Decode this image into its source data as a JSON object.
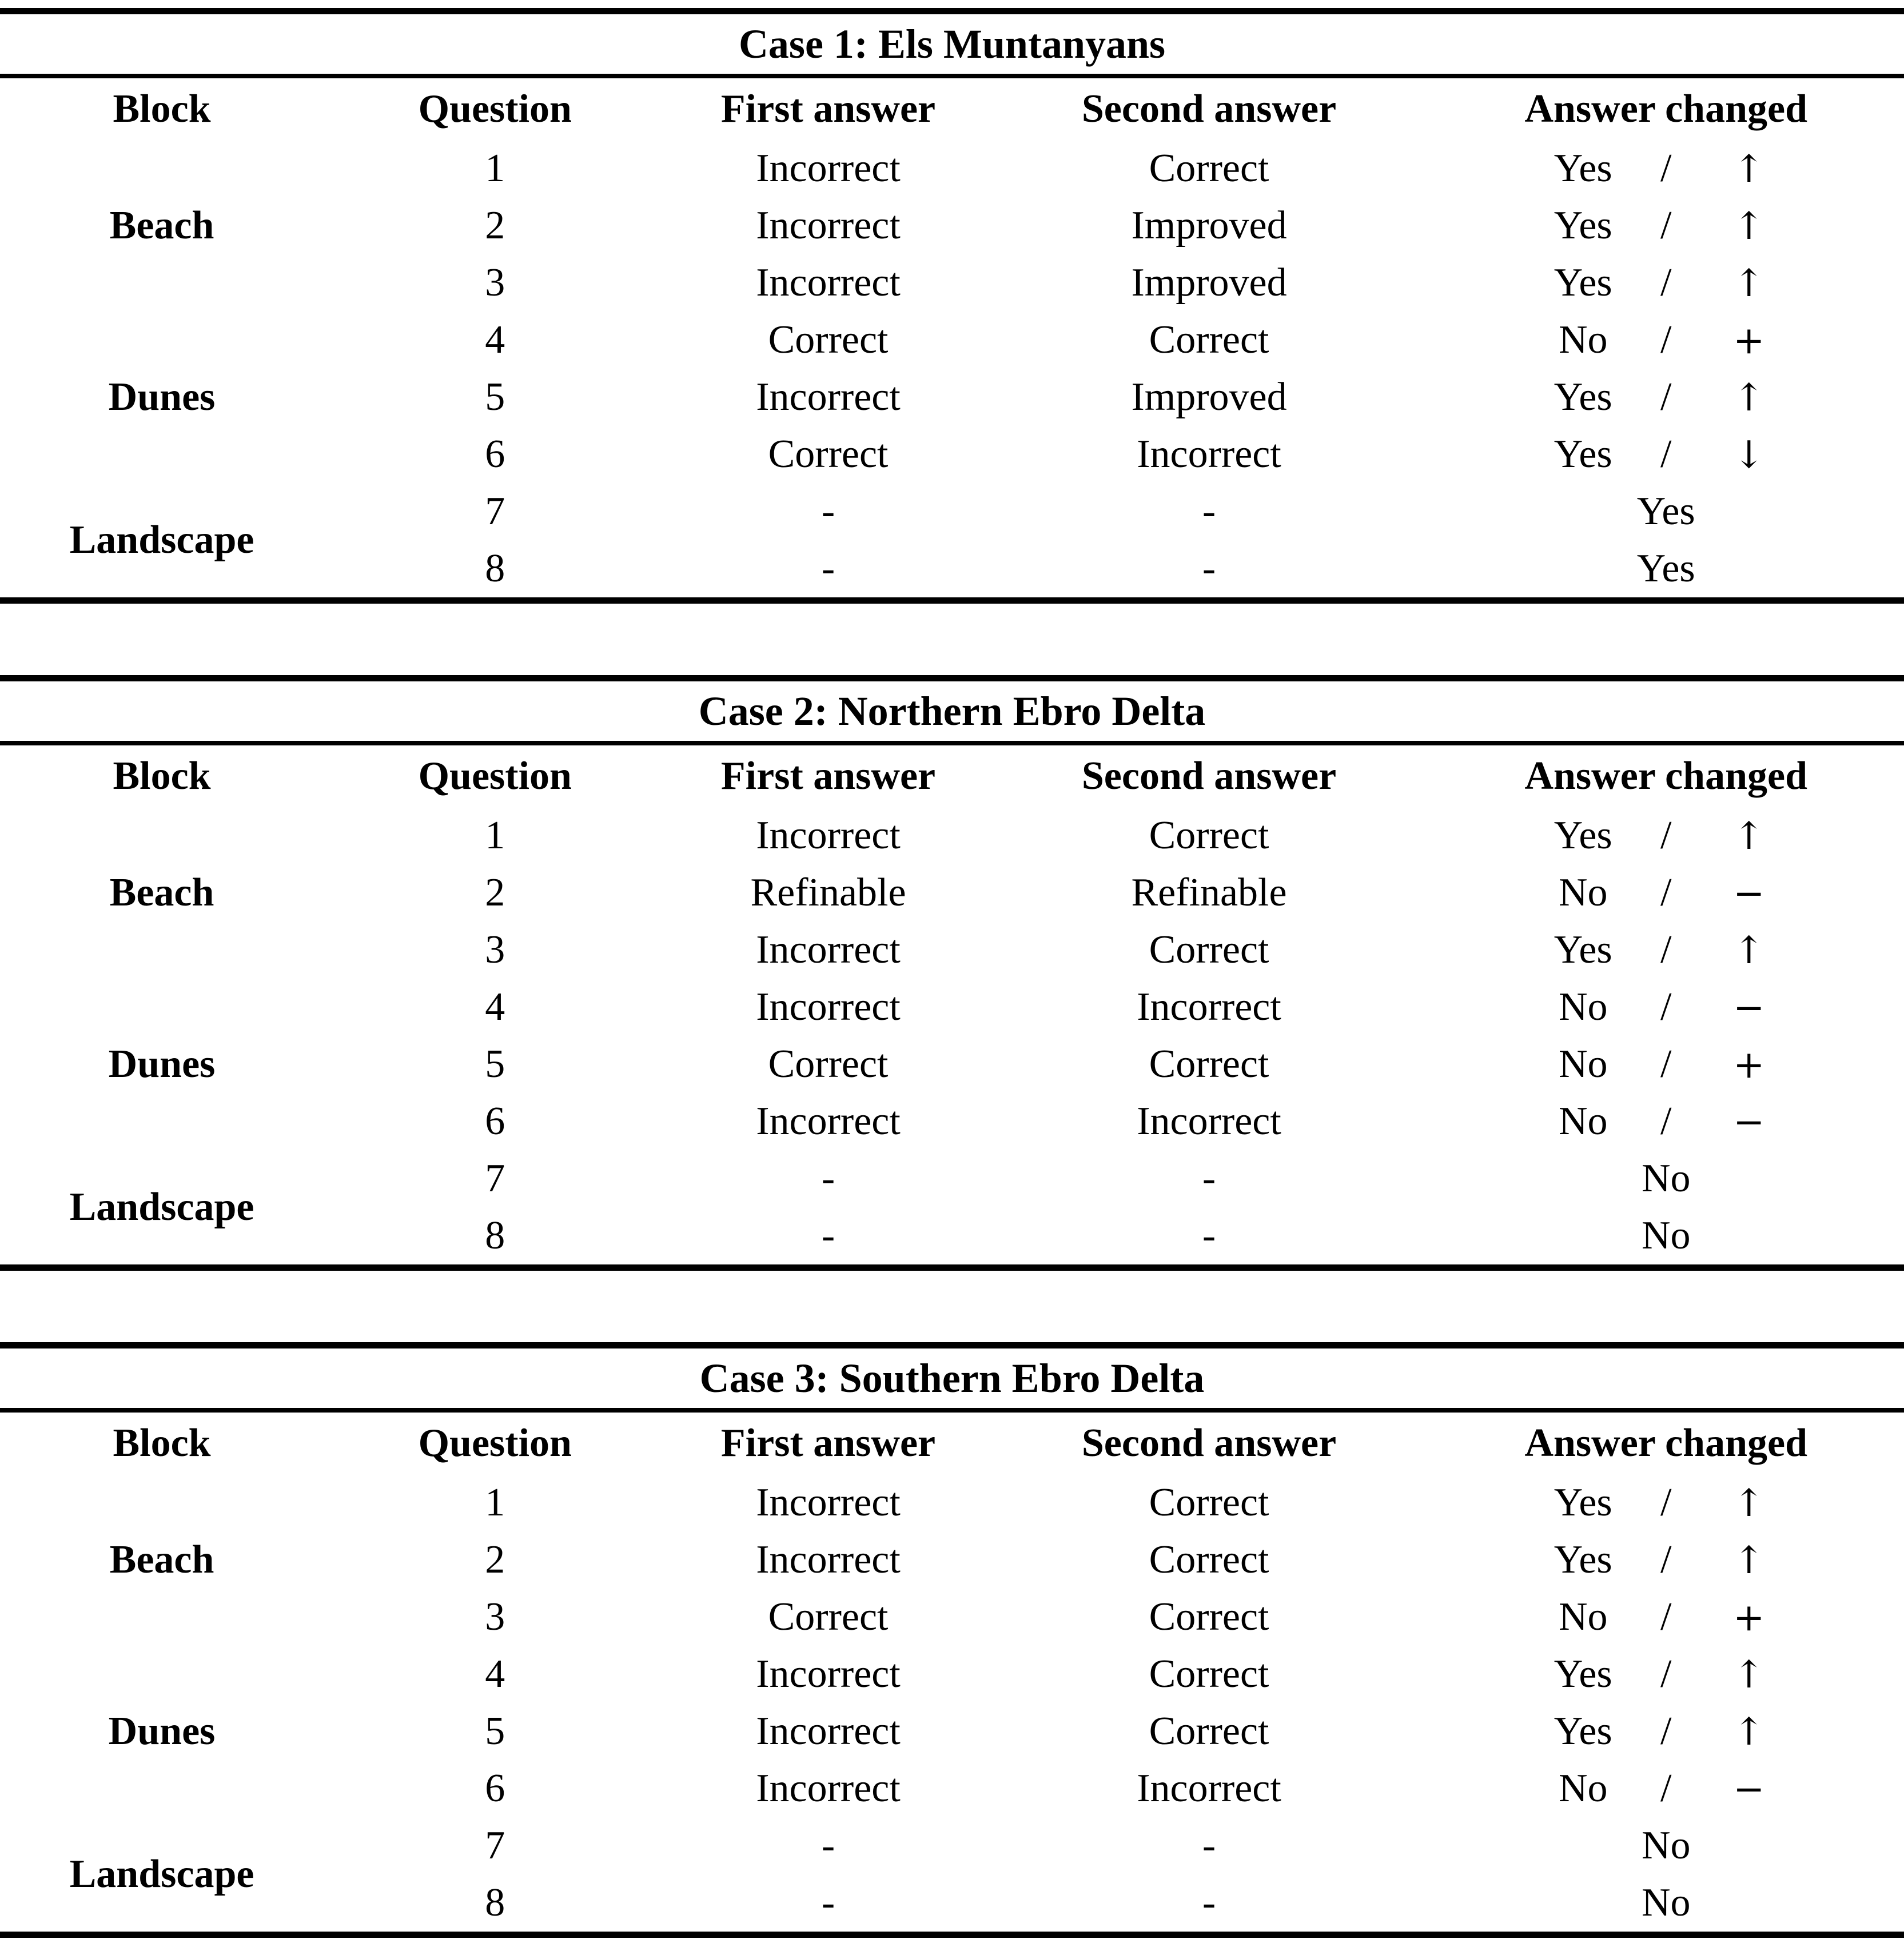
{
  "page": {
    "background": "#ffffff",
    "text_color": "#000000",
    "rule_color": "#000000"
  },
  "tables": [
    {
      "title": "Case 1: Els Muntanyans",
      "columns": [
        "Block",
        "Question",
        "First answer",
        "Second answer",
        "Answer changed"
      ],
      "blocks": [
        {
          "label": "Beach"
        },
        {
          "label": "Dunes"
        },
        {
          "label": "Landscape"
        }
      ],
      "rows": [
        {
          "question": "1",
          "first": "Incorrect",
          "second": "Correct",
          "changed": "Yes",
          "sep": "/",
          "symbol": "↑"
        },
        {
          "question": "2",
          "first": "Incorrect",
          "second": "Improved",
          "changed": "Yes",
          "sep": "/",
          "symbol": "↑"
        },
        {
          "question": "3",
          "first": "Incorrect",
          "second": "Improved",
          "changed": "Yes",
          "sep": "/",
          "symbol": "↑"
        },
        {
          "question": "4",
          "first": "Correct",
          "second": "Correct",
          "changed": "No",
          "sep": "/",
          "symbol": "+"
        },
        {
          "question": "5",
          "first": "Incorrect",
          "second": "Improved",
          "changed": "Yes",
          "sep": "/",
          "symbol": "↑"
        },
        {
          "question": "6",
          "first": "Correct",
          "second": "Incorrect",
          "changed": "Yes",
          "sep": "/",
          "symbol": "↓"
        },
        {
          "question": "7",
          "first": "-",
          "second": "-",
          "changed": "Yes",
          "sep": "",
          "symbol": ""
        },
        {
          "question": "8",
          "first": "-",
          "second": "-",
          "changed": "Yes",
          "sep": "",
          "symbol": ""
        }
      ]
    },
    {
      "title": "Case 2: Northern Ebro Delta",
      "columns": [
        "Block",
        "Question",
        "First answer",
        "Second answer",
        "Answer changed"
      ],
      "blocks": [
        {
          "label": "Beach"
        },
        {
          "label": "Dunes"
        },
        {
          "label": "Landscape"
        }
      ],
      "rows": [
        {
          "question": "1",
          "first": "Incorrect",
          "second": "Correct",
          "changed": "Yes",
          "sep": "/",
          "symbol": "↑"
        },
        {
          "question": "2",
          "first": "Refinable",
          "second": "Refinable",
          "changed": "No",
          "sep": "/",
          "symbol": "−"
        },
        {
          "question": "3",
          "first": "Incorrect",
          "second": "Correct",
          "changed": "Yes",
          "sep": "/",
          "symbol": "↑"
        },
        {
          "question": "4",
          "first": "Incorrect",
          "second": "Incorrect",
          "changed": "No",
          "sep": "/",
          "symbol": "−"
        },
        {
          "question": "5",
          "first": "Correct",
          "second": "Correct",
          "changed": "No",
          "sep": "/",
          "symbol": "+"
        },
        {
          "question": "6",
          "first": "Incorrect",
          "second": "Incorrect",
          "changed": "No",
          "sep": "/",
          "symbol": "−"
        },
        {
          "question": "7",
          "first": "-",
          "second": "-",
          "changed": "No",
          "sep": "",
          "symbol": ""
        },
        {
          "question": "8",
          "first": "-",
          "second": "-",
          "changed": "No",
          "sep": "",
          "symbol": ""
        }
      ]
    },
    {
      "title": "Case 3: Southern Ebro Delta",
      "columns": [
        "Block",
        "Question",
        "First answer",
        "Second answer",
        "Answer changed"
      ],
      "blocks": [
        {
          "label": "Beach"
        },
        {
          "label": "Dunes"
        },
        {
          "label": "Landscape"
        }
      ],
      "rows": [
        {
          "question": "1",
          "first": "Incorrect",
          "second": "Correct",
          "changed": "Yes",
          "sep": "/",
          "symbol": "↑"
        },
        {
          "question": "2",
          "first": "Incorrect",
          "second": "Correct",
          "changed": "Yes",
          "sep": "/",
          "symbol": "↑"
        },
        {
          "question": "3",
          "first": "Correct",
          "second": "Correct",
          "changed": "No",
          "sep": "/",
          "symbol": "+"
        },
        {
          "question": "4",
          "first": "Incorrect",
          "second": "Correct",
          "changed": "Yes",
          "sep": "/",
          "symbol": "↑"
        },
        {
          "question": "5",
          "first": "Incorrect",
          "second": "Correct",
          "changed": "Yes",
          "sep": "/",
          "symbol": "↑"
        },
        {
          "question": "6",
          "first": "Incorrect",
          "second": "Incorrect",
          "changed": "No",
          "sep": "/",
          "symbol": "−"
        },
        {
          "question": "7",
          "first": "-",
          "second": "-",
          "changed": "No",
          "sep": "",
          "symbol": ""
        },
        {
          "question": "8",
          "first": "-",
          "second": "-",
          "changed": "No",
          "sep": "",
          "symbol": ""
        }
      ]
    }
  ]
}
